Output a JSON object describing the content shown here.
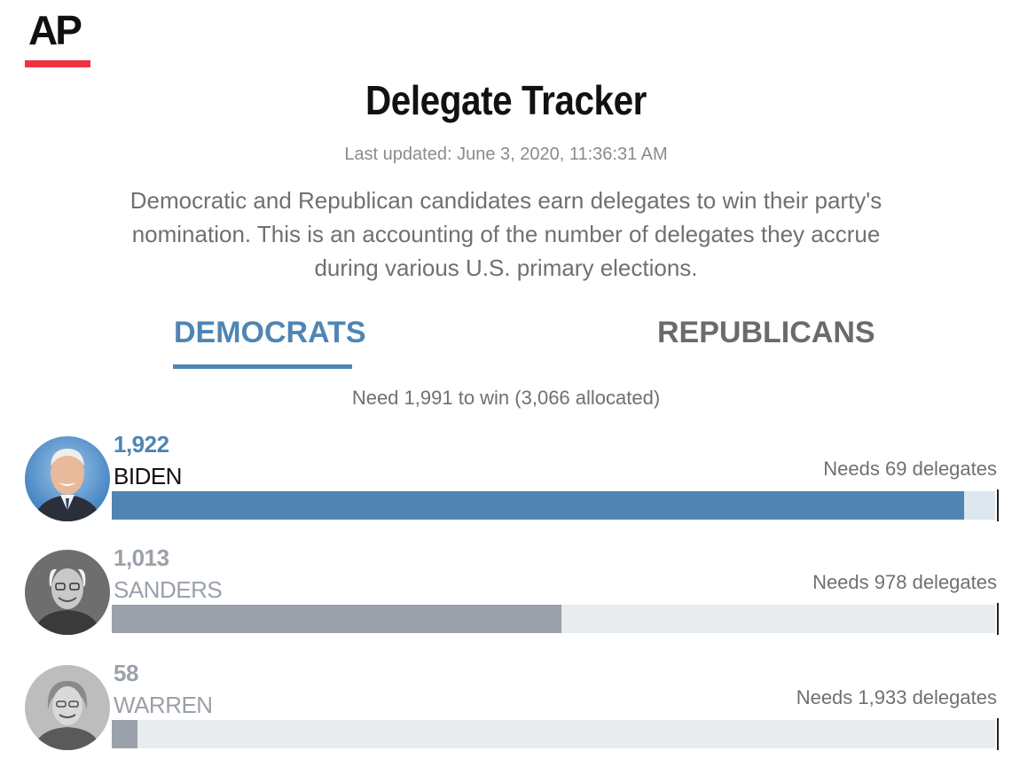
{
  "brand": {
    "logo_text": "AP",
    "accent": "#ef3340"
  },
  "header": {
    "title": "Delegate Tracker",
    "last_updated": "Last updated: June 3, 2020, 11:36:31 AM",
    "description": "Democratic and Republican candidates earn delegates to win their party's nomination. This is an accounting of the number of delegates they accrue during various U.S. primary elections."
  },
  "tabs": [
    {
      "label": "DEMOCRATS",
      "active": true,
      "color": "#5085b3"
    },
    {
      "label": "REPUBLICANS",
      "active": false,
      "color": "#6b6b6b"
    }
  ],
  "summary": {
    "need_text": "Need 1,991 to win (3,066 allocated)",
    "to_win": 1991
  },
  "candidates": [
    {
      "count": "1,922",
      "name": "BIDEN",
      "needs": "Needs 69 delegates",
      "delegates": 1922,
      "fill_color": "#5085b3",
      "track_color": "#dde7f0",
      "count_color": "#5085b3",
      "name_color": "#111111",
      "avatar": "biden-photo"
    },
    {
      "count": "1,013",
      "name": "SANDERS",
      "needs": "Needs 978 delegates",
      "delegates": 1013,
      "fill_color": "#9aa1aa",
      "track_color": "#e9ecef",
      "count_color": "#9aa1aa",
      "name_color": "#9aa1aa",
      "avatar": "sanders-photo"
    },
    {
      "count": "58",
      "name": "WARREN",
      "needs": "Needs 1,933 delegates",
      "delegates": 58,
      "fill_color": "#9aa1aa",
      "track_color": "#e9ecef",
      "count_color": "#9aa1aa",
      "name_color": "#9aa1aa",
      "avatar": "warren-photo"
    }
  ]
}
